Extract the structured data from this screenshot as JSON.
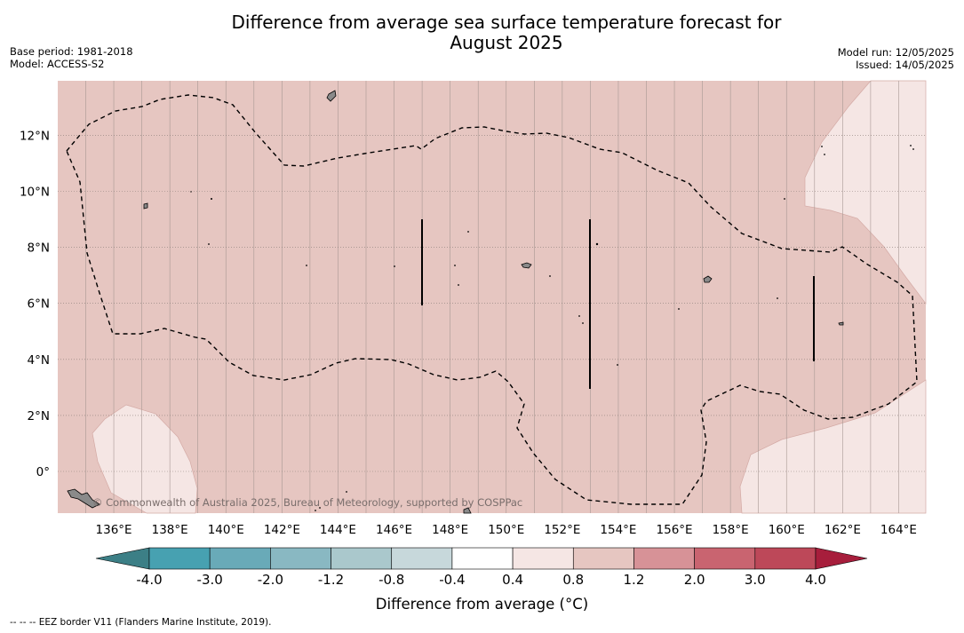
{
  "header": {
    "title_line1": "Difference from average sea surface temperature forecast for",
    "title_line2": "August 2025",
    "base_period": "Base period: 1981-2018",
    "model": "Model: ACCESS-S2",
    "model_run": "Model run: 12/05/2025",
    "issued": "Issued: 14/05/2025"
  },
  "map": {
    "lon_ticks": [
      "136°E",
      "138°E",
      "140°E",
      "142°E",
      "144°E",
      "146°E",
      "148°E",
      "150°E",
      "152°E",
      "154°E",
      "156°E",
      "158°E",
      "160°E",
      "162°E",
      "164°E"
    ],
    "lon_values": [
      136,
      138,
      140,
      142,
      144,
      146,
      148,
      150,
      152,
      154,
      156,
      158,
      160,
      162,
      164
    ],
    "lat_ticks": [
      "12°N",
      "10°N",
      "8°N",
      "6°N",
      "4°N",
      "2°N",
      "0°"
    ],
    "lat_values": [
      12,
      10,
      8,
      6,
      4,
      2,
      0
    ],
    "copyright": "© Commonwealth of Australia 2025, Bureau of Meteorology, supported by COSPPac",
    "background_color": "#e6c6c1",
    "light_color": "#f5e6e4",
    "grid_color": "#a89893"
  },
  "colorbar": {
    "ticks": [
      "-4.0",
      "-3.0",
      "-2.0",
      "-1.2",
      "-0.8",
      "-0.4",
      "0.4",
      "0.8",
      "1.2",
      "2.0",
      "3.0",
      "4.0"
    ],
    "colors": [
      "#47a1b1",
      "#69aab8",
      "#89b8c2",
      "#aac8cc",
      "#c7d8db",
      "#ffffff",
      "#f5e6e4",
      "#e6c6c1",
      "#d79297",
      "#c96470",
      "#bd4859"
    ],
    "low_extend_color": "#3c7f86",
    "high_extend_color": "#a71e3c",
    "label": "Difference from average (°C)"
  },
  "footnote": "--  --  -- EEZ border V11 (Flanders Marine Institute, 2019)."
}
